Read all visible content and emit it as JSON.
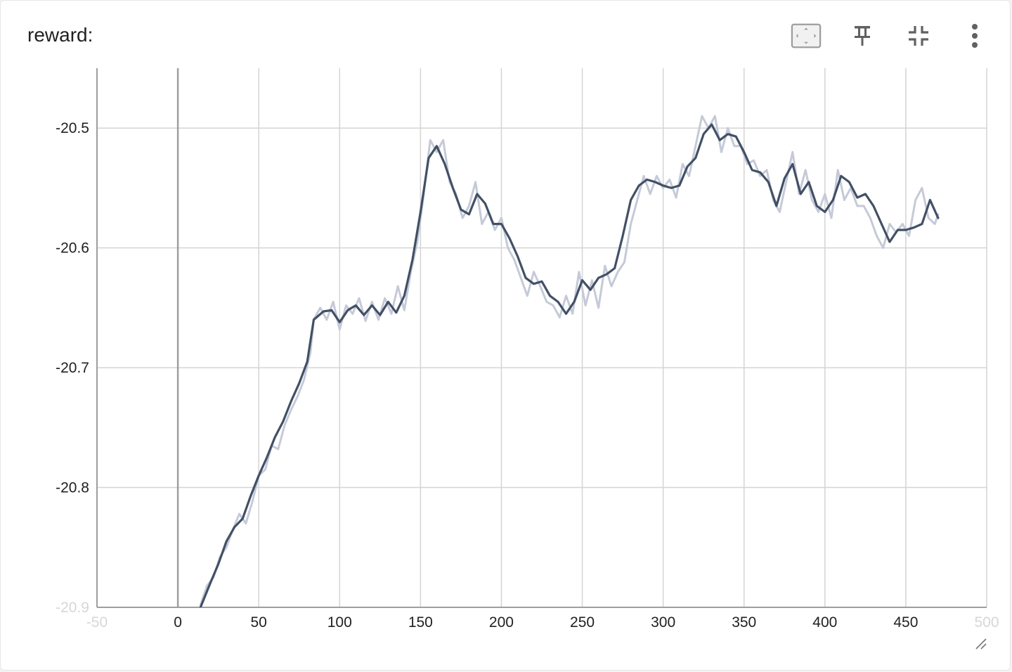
{
  "card": {
    "title": "reward:"
  },
  "toolbar": {
    "items": [
      {
        "name": "fit-domain-icon"
      },
      {
        "name": "pin-icon"
      },
      {
        "name": "collapse-icon"
      },
      {
        "name": "more-vert-icon"
      }
    ]
  },
  "colors": {
    "smoothed_line": "#425066",
    "raw_line": "#c5cad8",
    "grid": "#d4d4d4",
    "axis": "#9e9e9e",
    "toolbar_icon": "#616161"
  },
  "chart_data": {
    "type": "line",
    "title": "reward:",
    "xlabel": "",
    "ylabel": "",
    "xlim": [
      -50,
      500
    ],
    "ylim": [
      -20.9,
      -20.45
    ],
    "x_ticks": [
      -50,
      0,
      50,
      100,
      150,
      200,
      250,
      300,
      350,
      400,
      450,
      500
    ],
    "y_ticks": [
      -20.9,
      -20.8,
      -20.7,
      -20.6,
      -20.5
    ],
    "grid": true,
    "legend": "none",
    "series": [
      {
        "role": "smoothed",
        "x": [
          14,
          20,
          25,
          30,
          35,
          40,
          45,
          50,
          55,
          60,
          65,
          70,
          75,
          80,
          84,
          90,
          95,
          100,
          105,
          110,
          115,
          120,
          125,
          130,
          135,
          140,
          145,
          150,
          155,
          160,
          165,
          170,
          175,
          180,
          185,
          190,
          195,
          200,
          205,
          210,
          215,
          220,
          225,
          230,
          235,
          240,
          245,
          250,
          255,
          260,
          265,
          270,
          275,
          280,
          285,
          290,
          295,
          300,
          305,
          310,
          315,
          320,
          325,
          330,
          335,
          340,
          345,
          350,
          355,
          360,
          365,
          370,
          375,
          380,
          385,
          390,
          395,
          400,
          405,
          410,
          415,
          420,
          425,
          430,
          435,
          440,
          445,
          450,
          455,
          460,
          465,
          470
        ],
        "y": [
          -20.9,
          -20.88,
          -20.864,
          -20.845,
          -20.833,
          -20.826,
          -20.807,
          -20.79,
          -20.775,
          -20.758,
          -20.745,
          -20.728,
          -20.713,
          -20.695,
          -20.66,
          -20.653,
          -20.652,
          -20.662,
          -20.652,
          -20.648,
          -20.656,
          -20.648,
          -20.656,
          -20.645,
          -20.654,
          -20.64,
          -20.61,
          -20.57,
          -20.525,
          -20.515,
          -20.53,
          -20.55,
          -20.568,
          -20.572,
          -20.555,
          -20.563,
          -20.58,
          -20.58,
          -20.592,
          -20.607,
          -20.625,
          -20.63,
          -20.628,
          -20.64,
          -20.645,
          -20.655,
          -20.645,
          -20.627,
          -20.635,
          -20.625,
          -20.622,
          -20.617,
          -20.59,
          -20.56,
          -20.548,
          -20.543,
          -20.545,
          -20.548,
          -20.55,
          -20.548,
          -20.532,
          -20.525,
          -20.505,
          -20.497,
          -20.51,
          -20.505,
          -20.507,
          -20.52,
          -20.535,
          -20.537,
          -20.545,
          -20.565,
          -20.542,
          -20.53,
          -20.555,
          -20.545,
          -20.565,
          -20.57,
          -20.56,
          -20.54,
          -20.545,
          -20.558,
          -20.555,
          -20.565,
          -20.58,
          -20.595,
          -20.585,
          -20.585,
          -20.583,
          -20.58,
          -20.56,
          -20.575
        ]
      },
      {
        "role": "raw",
        "x": [
          14,
          18,
          22,
          26,
          30,
          34,
          38,
          42,
          46,
          50,
          54,
          58,
          62,
          66,
          70,
          74,
          78,
          82,
          84,
          88,
          92,
          96,
          100,
          104,
          108,
          112,
          116,
          120,
          124,
          128,
          132,
          136,
          140,
          144,
          148,
          152,
          156,
          160,
          164,
          168,
          172,
          176,
          180,
          184,
          188,
          192,
          196,
          200,
          204,
          208,
          212,
          216,
          220,
          224,
          228,
          232,
          236,
          240,
          244,
          248,
          252,
          256,
          260,
          264,
          268,
          272,
          276,
          280,
          284,
          288,
          292,
          296,
          300,
          304,
          308,
          312,
          316,
          320,
          324,
          328,
          332,
          336,
          340,
          344,
          348,
          352,
          356,
          360,
          364,
          368,
          372,
          376,
          380,
          384,
          388,
          392,
          396,
          400,
          404,
          408,
          412,
          416,
          420,
          424,
          428,
          432,
          436,
          440,
          444,
          448,
          452,
          456,
          460,
          464,
          468,
          470
        ],
        "y": [
          -20.898,
          -20.882,
          -20.875,
          -20.858,
          -20.85,
          -20.835,
          -20.822,
          -20.83,
          -20.812,
          -20.79,
          -20.785,
          -20.765,
          -20.768,
          -20.748,
          -20.735,
          -20.724,
          -20.71,
          -20.687,
          -20.66,
          -20.65,
          -20.66,
          -20.645,
          -20.668,
          -20.648,
          -20.655,
          -20.642,
          -20.661,
          -20.645,
          -20.66,
          -20.642,
          -20.655,
          -20.632,
          -20.652,
          -20.62,
          -20.595,
          -20.555,
          -20.51,
          -20.52,
          -20.51,
          -20.545,
          -20.555,
          -20.575,
          -20.565,
          -20.545,
          -20.58,
          -20.57,
          -20.585,
          -20.575,
          -20.6,
          -20.61,
          -20.625,
          -20.64,
          -20.62,
          -20.632,
          -20.645,
          -20.648,
          -20.658,
          -20.64,
          -20.655,
          -20.62,
          -20.648,
          -20.627,
          -20.65,
          -20.615,
          -20.632,
          -20.62,
          -20.612,
          -20.58,
          -20.56,
          -20.54,
          -20.555,
          -20.54,
          -20.55,
          -20.543,
          -20.558,
          -20.53,
          -20.54,
          -20.515,
          -20.49,
          -20.5,
          -20.49,
          -20.52,
          -20.5,
          -20.515,
          -20.515,
          -20.53,
          -20.527,
          -20.54,
          -20.535,
          -20.56,
          -20.57,
          -20.545,
          -20.52,
          -20.555,
          -20.535,
          -20.56,
          -20.57,
          -20.555,
          -20.575,
          -20.535,
          -20.56,
          -20.55,
          -20.565,
          -20.565,
          -20.575,
          -20.59,
          -20.6,
          -20.58,
          -20.587,
          -20.58,
          -20.59,
          -20.56,
          -20.55,
          -20.575,
          -20.58,
          -20.572
        ]
      }
    ]
  }
}
